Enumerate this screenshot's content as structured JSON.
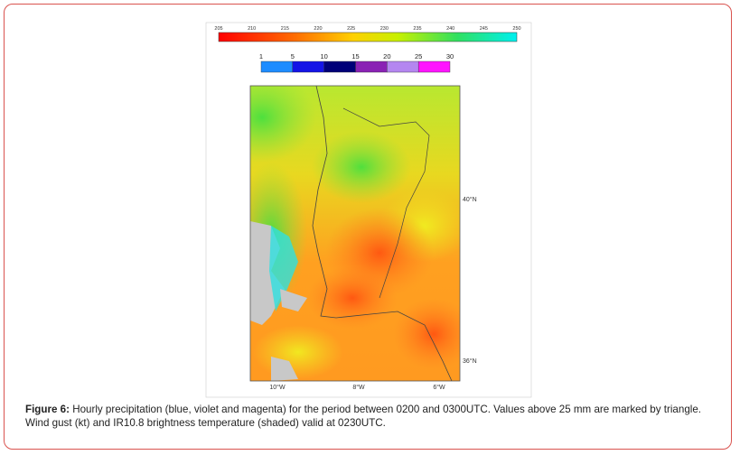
{
  "figure": {
    "temperature_colorbar": {
      "ticks": [
        "205",
        "210",
        "215",
        "220",
        "225",
        "230",
        "235",
        "240",
        "245",
        "250"
      ]
    },
    "precipitation_colorbar": {
      "ticks": [
        "1",
        "5",
        "10",
        "15",
        "20",
        "25",
        "30"
      ],
      "colors": [
        "#1e8cff",
        "#1414e6",
        "#000078",
        "#8a22b4",
        "#b486f0",
        "#ff14ff"
      ]
    },
    "map": {
      "lat_labels": [
        "40°N",
        "36°N"
      ],
      "lon_labels": [
        "10°W",
        "8°W",
        "6°W"
      ]
    },
    "caption": {
      "label": "Figure 6:",
      "text": "Hourly precipitation (blue, violet and magenta) for the period between 0200 and 0300UTC. Values above 25 mm are marked by triangle. Wind gust (kt) and IR10.8 brightness temperature (shaded) valid at 0230UTC."
    }
  }
}
